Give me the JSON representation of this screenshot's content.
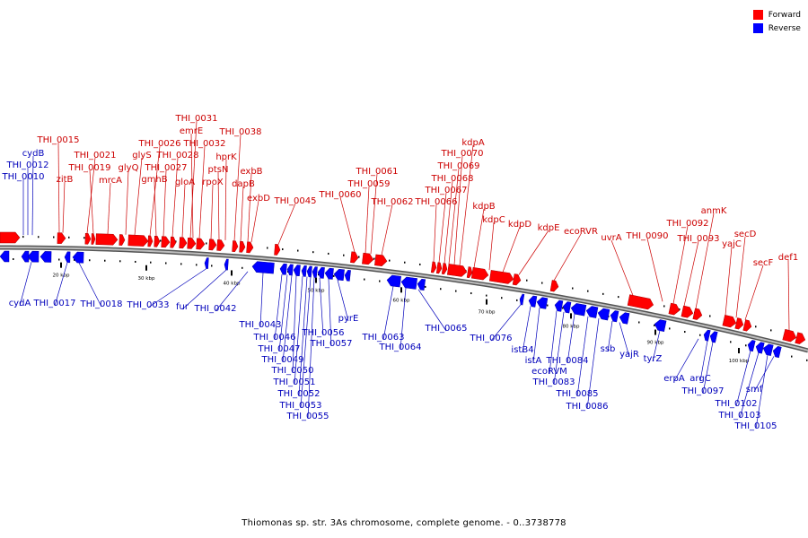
{
  "title": "Thiomonas sp. str. 3As chromosome, complete genome. - 0..3738778",
  "colors": {
    "forward": "#ff0000",
    "reverse": "#0000ff",
    "axis": "#888888",
    "forward_label": "#cc0000",
    "reverse_label": "#0000bb"
  },
  "legend": {
    "items": [
      {
        "label": "Forward",
        "color": "#ff0000"
      },
      {
        "label": "Reverse",
        "color": "#0000ff"
      }
    ]
  },
  "scale_ticks": [
    {
      "label": "20 kbp",
      "kbp": 20
    },
    {
      "label": "30 kbp",
      "kbp": 30
    },
    {
      "label": "40 kbp",
      "kbp": 40
    },
    {
      "label": "50 kbp",
      "kbp": 50
    },
    {
      "label": "60 kbp",
      "kbp": 60
    },
    {
      "label": "70 kbp",
      "kbp": 70
    },
    {
      "label": "80 kbp",
      "kbp": 80
    },
    {
      "label": "90 kbp",
      "kbp": 90
    },
    {
      "label": "100 kbp",
      "kbp": 100
    }
  ],
  "forward_genes": [
    "THI_0015",
    "zitB",
    "THI_0021",
    "THI_0019",
    "mrcA",
    "glyQ",
    "glyS",
    "THI_0026",
    "gmhB",
    "THI_0027",
    "THI_0028",
    "gloA",
    "THI_0031",
    "emrE",
    "THI_0032",
    "rpoX",
    "ptsN",
    "hprK",
    "THI_0038",
    "dapB",
    "exbB",
    "exbD",
    "THI_0045",
    "THI_0060",
    "THI_0059",
    "THI_0061",
    "THI_0062",
    "THI_0066",
    "THI_0067",
    "THI_0068",
    "THI_0069",
    "THI_0070",
    "kdpA",
    "kdpB",
    "kdpC",
    "kdpD",
    "kdpE",
    "ecoRVR",
    "uvrA",
    "THI_0090",
    "THI_0092",
    "THI_0093",
    "anmK",
    "yajC",
    "secD",
    "secF",
    "def1"
  ],
  "reverse_genes_top": [
    "cydB",
    "THI_0012",
    "THI_0010"
  ],
  "reverse_genes": [
    "cydA",
    "THI_0017",
    "THI_0018",
    "THI_0033",
    "fur",
    "THI_0042",
    "THI_0043",
    "THI_0046",
    "THI_0047",
    "THI_0049",
    "THI_0050",
    "THI_0051",
    "THI_0052",
    "THI_0053",
    "THI_0055",
    "THI_0056",
    "THI_0057",
    "pyrE",
    "THI_0063",
    "THI_0064",
    "THI_0065",
    "THI_0076",
    "istB4",
    "istA",
    "ecoRVM",
    "THI_0083",
    "THI_0084",
    "THI_0085",
    "THI_0086",
    "ssb",
    "yajR",
    "tyrZ",
    "erpA",
    "argC",
    "THI_0097",
    "THI_0102",
    "THI_0103",
    "THI_0105",
    "smf"
  ]
}
